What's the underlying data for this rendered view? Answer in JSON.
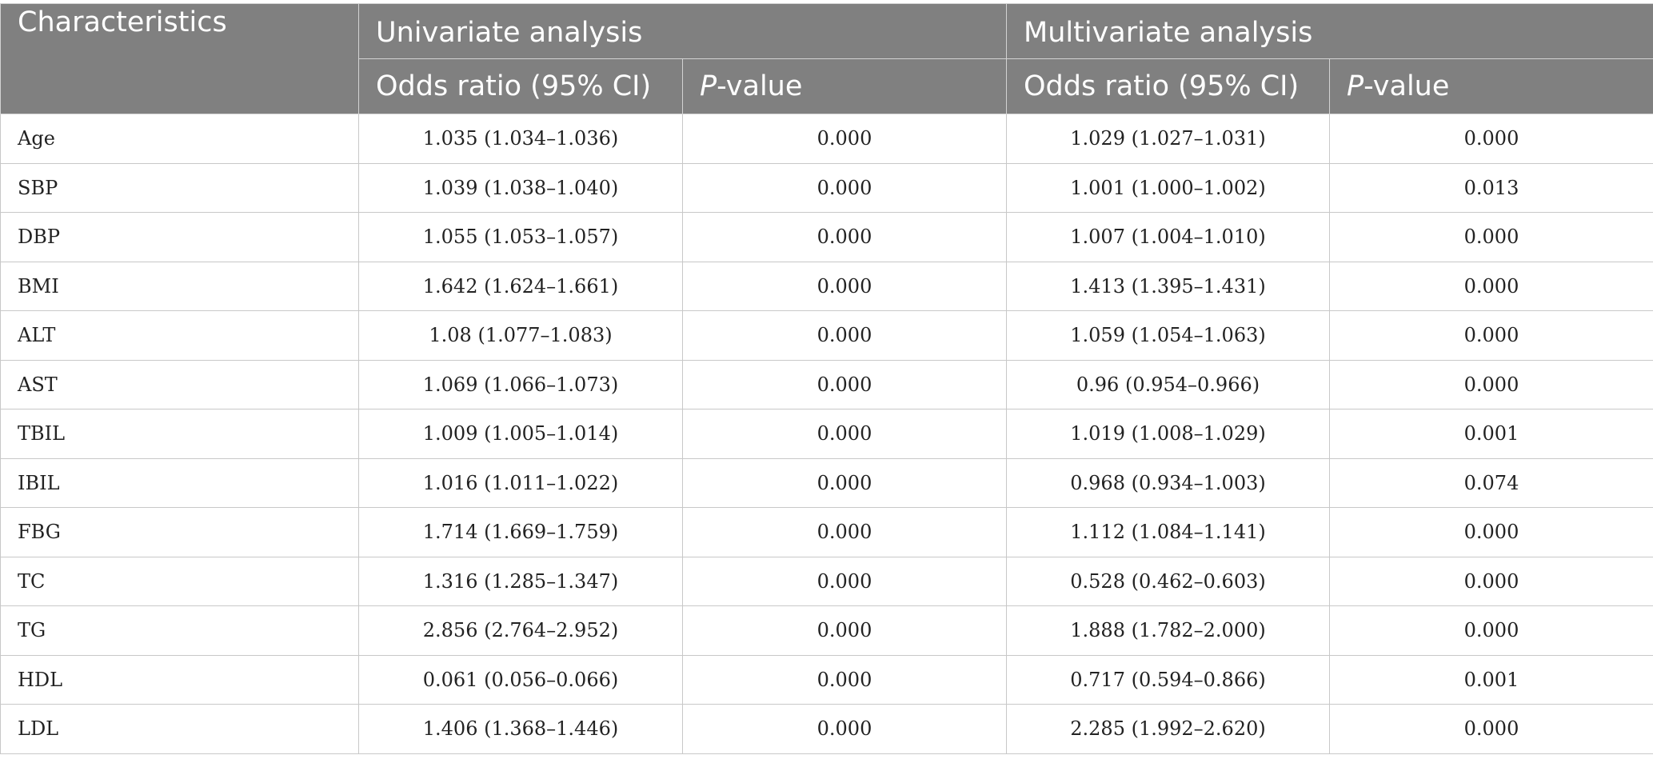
{
  "table": {
    "header": {
      "characteristics": "Characteristics",
      "univariate": "Univariate analysis",
      "multivariate": "Multivariate analysis",
      "odds_ratio": "Odds ratio (95% CI)",
      "p_prefix": "P",
      "p_suffix": "-value"
    },
    "rows": [
      {
        "name": "Age",
        "uni_or": "1.035 (1.034–1.036)",
        "uni_p": "0.000",
        "multi_or": "1.029 (1.027–1.031)",
        "multi_p": "0.000"
      },
      {
        "name": "SBP",
        "uni_or": "1.039 (1.038–1.040)",
        "uni_p": "0.000",
        "multi_or": "1.001 (1.000–1.002)",
        "multi_p": "0.013"
      },
      {
        "name": "DBP",
        "uni_or": "1.055 (1.053–1.057)",
        "uni_p": "0.000",
        "multi_or": "1.007 (1.004–1.010)",
        "multi_p": "0.000"
      },
      {
        "name": "BMI",
        "uni_or": "1.642 (1.624–1.661)",
        "uni_p": "0.000",
        "multi_or": "1.413 (1.395–1.431)",
        "multi_p": "0.000"
      },
      {
        "name": "ALT",
        "uni_or": "1.08 (1.077–1.083)",
        "uni_p": "0.000",
        "multi_or": "1.059 (1.054–1.063)",
        "multi_p": "0.000"
      },
      {
        "name": "AST",
        "uni_or": "1.069 (1.066–1.073)",
        "uni_p": "0.000",
        "multi_or": "0.96 (0.954–0.966)",
        "multi_p": "0.000"
      },
      {
        "name": "TBIL",
        "uni_or": "1.009 (1.005–1.014)",
        "uni_p": "0.000",
        "multi_or": "1.019 (1.008–1.029)",
        "multi_p": "0.001"
      },
      {
        "name": "IBIL",
        "uni_or": "1.016 (1.011–1.022)",
        "uni_p": "0.000",
        "multi_or": "0.968 (0.934–1.003)",
        "multi_p": "0.074"
      },
      {
        "name": "FBG",
        "uni_or": "1.714 (1.669–1.759)",
        "uni_p": "0.000",
        "multi_or": "1.112 (1.084–1.141)",
        "multi_p": "0.000"
      },
      {
        "name": "TC",
        "uni_or": "1.316 (1.285–1.347)",
        "uni_p": "0.000",
        "multi_or": "0.528 (0.462–0.603)",
        "multi_p": "0.000"
      },
      {
        "name": "TG",
        "uni_or": "2.856 (2.764–2.952)",
        "uni_p": "0.000",
        "multi_or": "1.888 (1.782–2.000)",
        "multi_p": "0.000"
      },
      {
        "name": "HDL",
        "uni_or": "0.061 (0.056–0.066)",
        "uni_p": "0.000",
        "multi_or": "0.717 (0.594–0.866)",
        "multi_p": "0.001"
      },
      {
        "name": "LDL",
        "uni_or": "1.406 (1.368–1.446)",
        "uni_p": "0.000",
        "multi_or": "2.285 (1.992–2.620)",
        "multi_p": "0.000"
      }
    ]
  }
}
